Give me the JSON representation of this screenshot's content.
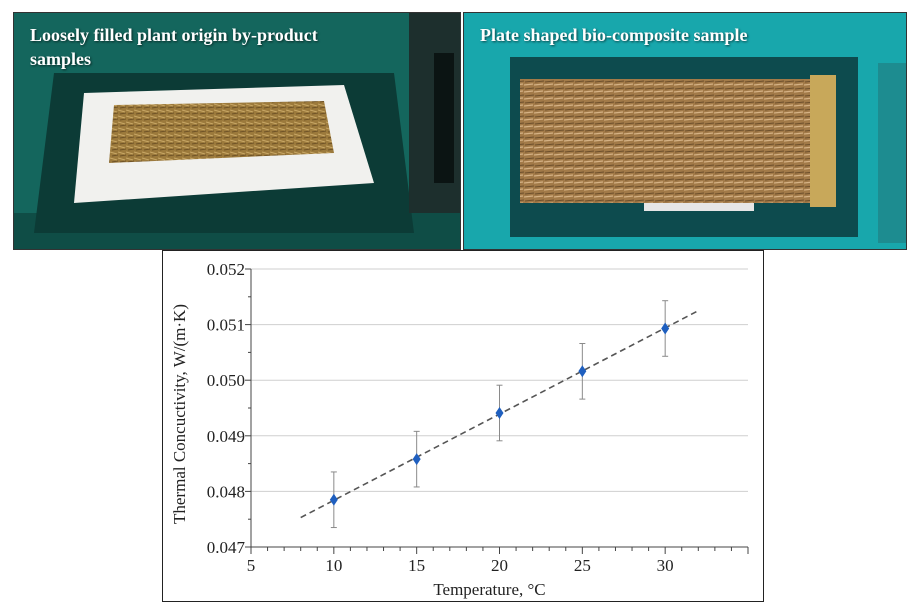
{
  "photos": {
    "left_caption_line1": "Loosely filled plant origin by-product",
    "left_caption_line2": "samples",
    "right_caption": "Plate shaped bio-composite sample"
  },
  "chart_data": {
    "type": "scatter",
    "xlabel": "Temperature, °C",
    "ylabel": "Thermal Concuctivity,  W/(m·K)",
    "xlim": [
      5,
      35
    ],
    "ylim": [
      0.047,
      0.052
    ],
    "x_ticks": [
      "5",
      "10",
      "15",
      "20",
      "25",
      "30"
    ],
    "y_ticks": [
      "0.047",
      "0.048",
      "0.049",
      "0.050",
      "0.051",
      "0.052"
    ],
    "grid": "horizontal",
    "points": [
      {
        "x": 10,
        "y": 0.04785,
        "err": 0.0005
      },
      {
        "x": 15,
        "y": 0.04858,
        "err": 0.0005
      },
      {
        "x": 20,
        "y": 0.04941,
        "err": 0.0005
      },
      {
        "x": 25,
        "y": 0.05016,
        "err": 0.0005
      },
      {
        "x": 30,
        "y": 0.05093,
        "err": 0.0005
      }
    ],
    "trendline": {
      "style": "dashed",
      "x_from": 8,
      "y_from": 0.04753,
      "x_to": 32,
      "y_to": 0.05125
    },
    "marker_color": "#1f5fbf",
    "error_bar_color": "#8a8a8a",
    "trendline_color": "#555555"
  }
}
